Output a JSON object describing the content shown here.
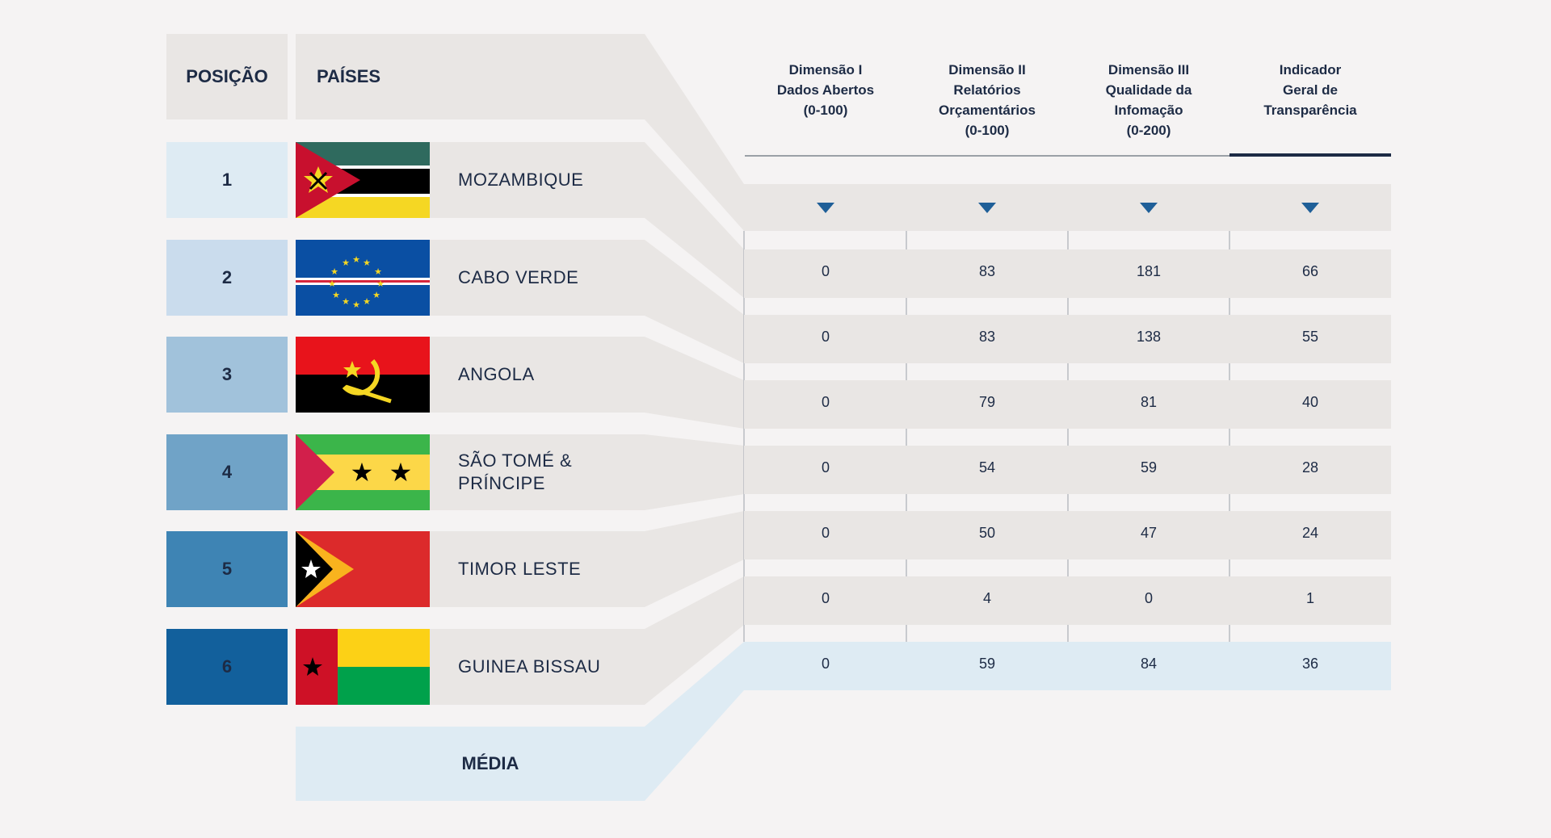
{
  "headers": {
    "position": "POSIÇÃO",
    "countries": "PAÍSES",
    "columns": [
      [
        "Dimensão I",
        "Dados Abertos",
        "(0-100)"
      ],
      [
        "Dimensão II",
        "Relatórios",
        "Orçamentários",
        "(0-100)"
      ],
      [
        "Dimensão III",
        "Qualidade da",
        "Infomação",
        "(0-200)"
      ],
      [
        "Indicador",
        "Geral de",
        "Transparência"
      ]
    ]
  },
  "rows": [
    {
      "position": "1",
      "country_lines": [
        "MOZAMBIQUE"
      ],
      "flag": "mozambique-flag"
    },
    {
      "position": "2",
      "country_lines": [
        "CABO VERDE"
      ],
      "flag": "cabo-verde-flag"
    },
    {
      "position": "3",
      "country_lines": [
        "ANGOLA"
      ],
      "flag": "angola-flag"
    },
    {
      "position": "4",
      "country_lines": [
        "SÃO TOMÉ &",
        "PRÍNCIPE"
      ],
      "flag": "sao-tome-principe-flag"
    },
    {
      "position": "5",
      "country_lines": [
        "TIMOR LESTE"
      ],
      "flag": "timor-leste-flag"
    },
    {
      "position": "6",
      "country_lines": [
        "GUINEA BISSAU"
      ],
      "flag": "guinea-bissau-flag"
    }
  ],
  "average_label": "MÉDIA",
  "colors": {
    "position_shades": [
      "#deebf3",
      "#cadced",
      "#a1c2db",
      "#70a3c7",
      "#3e84b4",
      "#12609c"
    ],
    "band": "#e9e6e4",
    "average_band": "#deebf3",
    "arrow": "#1f5f98",
    "text": "#1d2b45"
  },
  "chart_data": {
    "type": "table",
    "columns": [
      "Dimensão I Dados Abertos (0-100)",
      "Dimensão II Relatórios Orçamentários (0-100)",
      "Dimensão III Qualidade da Infomação (0-200)",
      "Indicador Geral de Transparência"
    ],
    "rows": [
      {
        "values": [
          "0",
          "83",
          "181",
          "66"
        ]
      },
      {
        "values": [
          "0",
          "83",
          "138",
          "55"
        ]
      },
      {
        "values": [
          "0",
          "79",
          "81",
          "40"
        ]
      },
      {
        "values": [
          "0",
          "54",
          "59",
          "28"
        ]
      },
      {
        "values": [
          "0",
          "50",
          "47",
          "24"
        ]
      },
      {
        "values": [
          "0",
          "4",
          "0",
          "1"
        ]
      }
    ],
    "average": [
      "0",
      "59",
      "84",
      "36"
    ]
  }
}
